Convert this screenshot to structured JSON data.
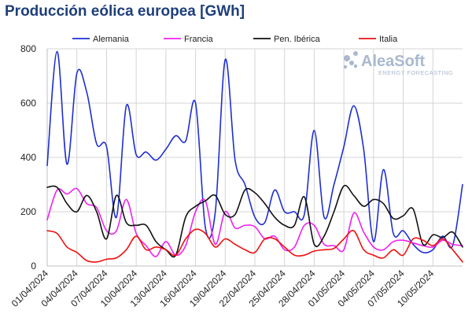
{
  "chart_data": {
    "type": "line",
    "title": "Producción eólica europea [GWh]",
    "xlabel": "",
    "ylabel": "",
    "ylim": [
      0,
      800
    ],
    "yticks": [
      0,
      200,
      400,
      600,
      800
    ],
    "grid": true,
    "legend_position": "top",
    "x": [
      "01/04/2024",
      "02/04/2024",
      "03/04/2024",
      "04/04/2024",
      "05/04/2024",
      "06/04/2024",
      "07/04/2024",
      "08/04/2024",
      "09/04/2024",
      "10/04/2024",
      "11/04/2024",
      "12/04/2024",
      "13/04/2024",
      "14/04/2024",
      "15/04/2024",
      "16/04/2024",
      "17/04/2024",
      "18/04/2024",
      "19/04/2024",
      "20/04/2024",
      "21/04/2024",
      "22/04/2024",
      "23/04/2024",
      "24/04/2024",
      "25/04/2024",
      "26/04/2024",
      "27/04/2024",
      "28/04/2024",
      "29/04/2024",
      "30/04/2024",
      "01/05/2024",
      "02/05/2024",
      "03/05/2024",
      "04/05/2024",
      "05/05/2024",
      "06/05/2024",
      "07/05/2024",
      "08/05/2024",
      "09/05/2024",
      "10/05/2024",
      "11/05/2024",
      "12/05/2024",
      "13/05/2024"
    ],
    "xticks": [
      "01/04/2024",
      "04/04/2024",
      "07/04/2024",
      "10/04/2024",
      "13/04/2024",
      "16/04/2024",
      "19/04/2024",
      "22/04/2024",
      "25/04/2024",
      "28/04/2024",
      "01/05/2024",
      "04/05/2024",
      "07/05/2024",
      "10/05/2024"
    ],
    "series": [
      {
        "name": "Alemania",
        "color": "#1f2fd0",
        "values": [
          370,
          790,
          375,
          710,
          640,
          450,
          440,
          180,
          590,
          410,
          420,
          390,
          430,
          480,
          460,
          600,
          140,
          200,
          760,
          390,
          300,
          180,
          160,
          280,
          200,
          200,
          190,
          500,
          180,
          300,
          440,
          590,
          430,
          90,
          355,
          120,
          130,
          80,
          50,
          60,
          110,
          75,
          300
        ]
      },
      {
        "name": "Francia",
        "color": "#ee22ee",
        "values": [
          170,
          280,
          265,
          285,
          230,
          215,
          130,
          130,
          245,
          120,
          75,
          35,
          90,
          40,
          75,
          200,
          240,
          80,
          200,
          140,
          150,
          145,
          100,
          110,
          60,
          70,
          150,
          150,
          80,
          75,
          60,
          195,
          125,
          70,
          60,
          90,
          95,
          85,
          75,
          70,
          95,
          80,
          75
        ]
      },
      {
        "name": "Pen. Ibérica",
        "color": "#111111",
        "values": [
          290,
          290,
          230,
          200,
          260,
          200,
          100,
          260,
          160,
          150,
          150,
          90,
          60,
          40,
          180,
          220,
          240,
          260,
          190,
          190,
          280,
          270,
          230,
          180,
          150,
          150,
          255,
          80,
          110,
          200,
          295,
          260,
          220,
          245,
          230,
          175,
          185,
          210,
          80,
          115,
          105,
          125,
          70
        ]
      },
      {
        "name": "Italia",
        "color": "#ee1111",
        "values": [
          130,
          120,
          70,
          50,
          20,
          15,
          25,
          30,
          60,
          110,
          60,
          70,
          60,
          40,
          100,
          135,
          120,
          70,
          100,
          80,
          60,
          50,
          100,
          100,
          70,
          40,
          40,
          55,
          60,
          65,
          100,
          130,
          60,
          40,
          30,
          60,
          40,
          100,
          95,
          75,
          100,
          60,
          15
        ]
      }
    ]
  },
  "watermark": {
    "brand": "AleaSoft",
    "tagline": "ENERGY FORECASTING"
  }
}
